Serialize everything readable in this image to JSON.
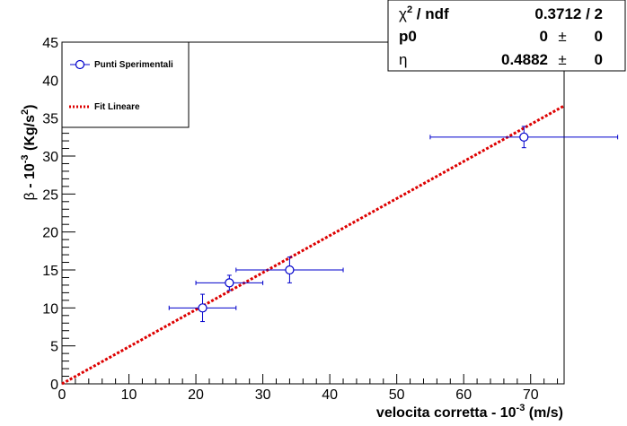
{
  "chart_data": {
    "type": "scatter",
    "title": "",
    "xlabel": "velocita corretta - 10",
    "xlabel_sup": "-3",
    "xlabel_unit": " (m/s)",
    "ylabel_beta": "β",
    "ylabel_mid": " - 10",
    "ylabel_sup": "-3",
    "ylabel_unit_open": " (Kg/s",
    "ylabel_unit_sup": "2",
    "ylabel_unit_close": ")",
    "xlim": [
      0,
      75
    ],
    "ylim": [
      0,
      45
    ],
    "x_ticks": [
      0,
      10,
      20,
      30,
      40,
      50,
      60,
      70
    ],
    "y_ticks": [
      0,
      5,
      10,
      15,
      20,
      25,
      30,
      35,
      40,
      45
    ],
    "grid": false,
    "series": [
      {
        "name": "Punti Sperimentali",
        "color": "#0000cc",
        "marker": "open-circle",
        "points": [
          {
            "x": 21,
            "y": 10,
            "xerr": 5,
            "yerr": 1.8
          },
          {
            "x": 25,
            "y": 13.3,
            "xerr": 5,
            "yerr": 1.0
          },
          {
            "x": 34,
            "y": 15,
            "xerr": 8,
            "yerr": 1.7
          },
          {
            "x": 69,
            "y": 32.5,
            "xerr": 14,
            "yerr": 1.4
          }
        ]
      },
      {
        "name": "Fit Lineare",
        "color": "#dd0000",
        "style": "dotted-line",
        "slope": 0.4882,
        "intercept": 0
      }
    ],
    "legend_position": "top-left",
    "stats": {
      "chi2_symbol": "χ",
      "chi2_sup": "2",
      "chi2_rest": " / ndf",
      "chi2_value": "0.3712 / 2",
      "p0_label": "p0",
      "p0_value": "0",
      "p0_error": "0",
      "eta_label": "η",
      "eta_value": "0.4882",
      "eta_error": "0",
      "pm": "±"
    }
  }
}
